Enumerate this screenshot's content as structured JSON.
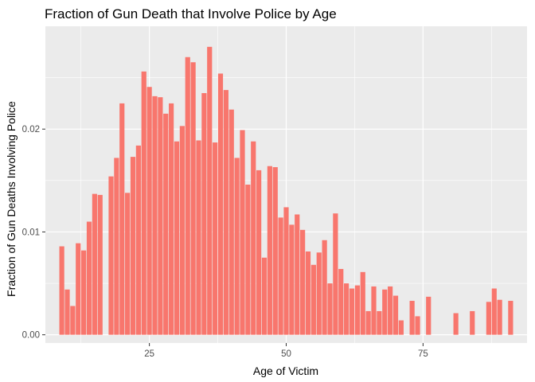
{
  "chart_data": {
    "type": "bar",
    "title": "Fraction of Gun Death that Involve Police by Age",
    "xlabel": "Age of Victim",
    "ylabel": "Fraction of Gun Deaths Involving Police",
    "xlim": [
      6,
      94
    ],
    "ylim": [
      -0.0008,
      0.03
    ],
    "x_ticks": [
      25,
      50,
      75
    ],
    "x_tick_labels": [
      "25",
      "50",
      "75"
    ],
    "y_ticks": [
      0,
      0.01,
      0.02
    ],
    "y_tick_labels": [
      "0.00",
      "0.01",
      "0.02"
    ],
    "grid": true,
    "bar_color": "#F8766D",
    "panel_color": "#EBEBEB",
    "x": [
      9,
      10,
      11,
      12,
      13,
      14,
      15,
      16,
      18,
      19,
      20,
      21,
      22,
      23,
      24,
      25,
      26,
      27,
      28,
      29,
      30,
      31,
      32,
      33,
      34,
      35,
      36,
      37,
      38,
      39,
      40,
      41,
      42,
      43,
      44,
      45,
      46,
      47,
      48,
      49,
      50,
      51,
      52,
      53,
      54,
      55,
      56,
      57,
      58,
      59,
      60,
      61,
      62,
      63,
      64,
      65,
      66,
      67,
      68,
      69,
      70,
      71,
      73,
      74,
      76,
      81,
      84,
      87,
      88,
      89,
      91
    ],
    "values": [
      0.0086,
      0.0044,
      0.0028,
      0.0089,
      0.0082,
      0.011,
      0.0137,
      0.0136,
      0.0154,
      0.0172,
      0.0225,
      0.0138,
      0.0173,
      0.0184,
      0.0256,
      0.0241,
      0.0232,
      0.0231,
      0.0215,
      0.0225,
      0.0188,
      0.0203,
      0.027,
      0.0265,
      0.0189,
      0.0235,
      0.028,
      0.0187,
      0.0254,
      0.0238,
      0.0219,
      0.0172,
      0.0199,
      0.0146,
      0.0188,
      0.016,
      0.0075,
      0.0164,
      0.0163,
      0.0114,
      0.0124,
      0.0107,
      0.0117,
      0.0102,
      0.0081,
      0.0068,
      0.008,
      0.0092,
      0.005,
      0.0118,
      0.0064,
      0.005,
      0.0045,
      0.0048,
      0.0061,
      0.0023,
      0.0047,
      0.0023,
      0.0044,
      0.0047,
      0.0038,
      0.0014,
      0.0033,
      0.0018,
      0.0037,
      0.0021,
      0.0023,
      0.0032,
      0.0045,
      0.0034,
      0.0033
    ]
  }
}
